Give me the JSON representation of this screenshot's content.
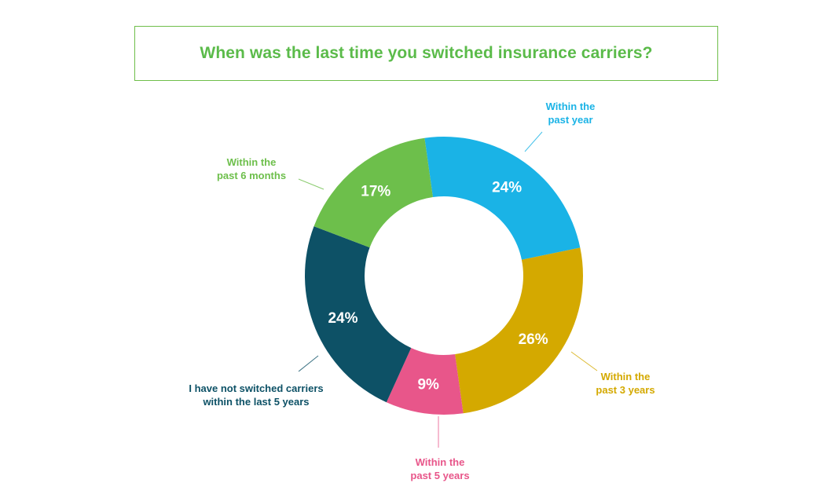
{
  "chart_data": {
    "type": "pie",
    "title": "When was the last time you switched insurance carriers?",
    "series": [
      {
        "label": "Within the past year",
        "label_lines": [
          "Within the",
          "past year"
        ],
        "value": 24,
        "value_label": "24%",
        "color": "#1ab3e6"
      },
      {
        "label": "Within the past 3 years",
        "label_lines": [
          "Within the",
          "past 3 years"
        ],
        "value": 26,
        "value_label": "26%",
        "color": "#d4a900"
      },
      {
        "label": "Within the past 5 years",
        "label_lines": [
          "Within the",
          "past 5 years"
        ],
        "value": 9,
        "value_label": "9%",
        "color": "#e8568a"
      },
      {
        "label": "I have not switched carriers within the last 5 years",
        "label_lines": [
          "I have not switched carriers",
          "within the last 5 years"
        ],
        "value": 24,
        "value_label": "24%",
        "color": "#0d5166"
      },
      {
        "label": "Within the past 6 months",
        "label_lines": [
          "Within the",
          "past 6 months"
        ],
        "value": 17,
        "value_label": "17%",
        "color": "#6dbf4b"
      }
    ]
  }
}
